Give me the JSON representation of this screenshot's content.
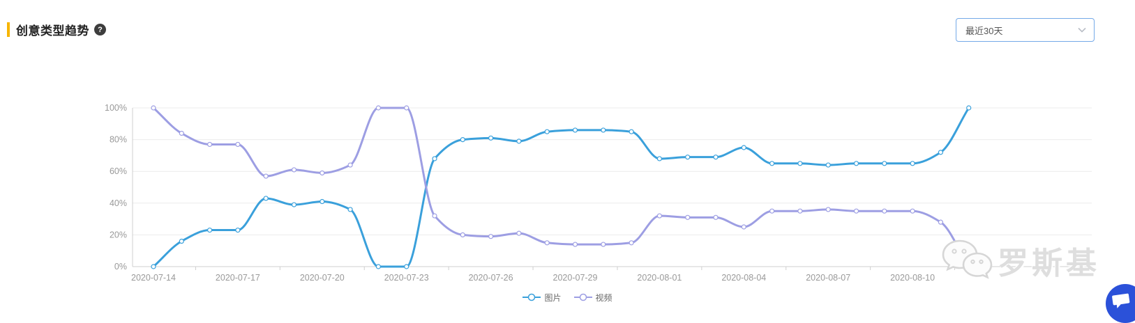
{
  "header": {
    "title": "创意类型趋势",
    "help_glyph": "?"
  },
  "period_selector": {
    "value": "最近30天"
  },
  "watermark": {
    "text": "罗斯基",
    "icon": "wechat-icon"
  },
  "fab": {
    "icon": "chat-bubble-icon",
    "color": "#2B51D9"
  },
  "colors": {
    "accent_yellow": "#F7B500",
    "dropdown_border": "#74A9E8",
    "grid_line": "#ECECEC",
    "axis_line": "#CFCFCF",
    "axis_label": "#999999",
    "legend_text": "#666666",
    "title_text": "#222222",
    "watermark_gray": "#DEDEDE",
    "fab_blue": "#2B51D9"
  },
  "chart_data": {
    "type": "line",
    "smooth": true,
    "grid": true,
    "legend_position": "bottom",
    "title": "创意类型趋势",
    "xlabel": "",
    "ylabel": "",
    "ylim": [
      0,
      100
    ],
    "y_tick_labels": [
      "0%",
      "20%",
      "40%",
      "60%",
      "80%",
      "100%"
    ],
    "x_label_interval": 3,
    "x": [
      "2020-07-14",
      "2020-07-15",
      "2020-07-16",
      "2020-07-17",
      "2020-07-18",
      "2020-07-19",
      "2020-07-20",
      "2020-07-21",
      "2020-07-22",
      "2020-07-23",
      "2020-07-24",
      "2020-07-25",
      "2020-07-26",
      "2020-07-27",
      "2020-07-28",
      "2020-07-29",
      "2020-07-30",
      "2020-07-31",
      "2020-08-01",
      "2020-08-02",
      "2020-08-03",
      "2020-08-04",
      "2020-08-05",
      "2020-08-06",
      "2020-08-07",
      "2020-08-08",
      "2020-08-09",
      "2020-08-10",
      "2020-08-11",
      "2020-08-12"
    ],
    "series": [
      {
        "name": "图片",
        "color": "#3AA0DB",
        "values": [
          0,
          16,
          23,
          23,
          43,
          39,
          41,
          36,
          0,
          0,
          68,
          80,
          81,
          79,
          85,
          86,
          86,
          85,
          68,
          69,
          69,
          75,
          65,
          65,
          64,
          65,
          65,
          65,
          72,
          100
        ]
      },
      {
        "name": "视频",
        "color": "#9D9EE3",
        "values": [
          100,
          84,
          77,
          77,
          57,
          61,
          59,
          64,
          100,
          100,
          32,
          20,
          19,
          21,
          15,
          14,
          14,
          15,
          32,
          31,
          31,
          25,
          35,
          35,
          36,
          35,
          35,
          35,
          28,
          0
        ]
      }
    ]
  }
}
